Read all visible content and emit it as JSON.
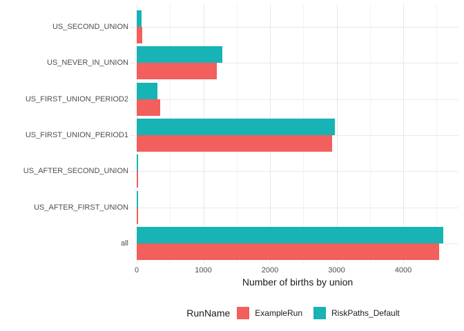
{
  "chart_data": {
    "type": "bar",
    "orientation": "horizontal",
    "title": "",
    "xlabel": "Number of births by union",
    "ylabel": "",
    "categories_top_to_bottom": [
      "US_SECOND_UNION",
      "US_NEVER_IN_UNION",
      "US_FIRST_UNION_PERIOD2",
      "US_FIRST_UNION_PERIOD1",
      "US_AFTER_SECOND_UNION",
      "US_AFTER_FIRST_UNION",
      "all"
    ],
    "series": [
      {
        "name": "ExampleRun",
        "color": "#f25f5c",
        "values": [
          85,
          1200,
          350,
          2930,
          12,
          12,
          4540
        ]
      },
      {
        "name": "RiskPaths_Default",
        "color": "#17b3b5",
        "values": [
          72,
          1285,
          310,
          2975,
          20,
          20,
          4600
        ]
      }
    ],
    "group_order_note": "RiskPaths_Default bar drawn above ExampleRun bar in each category group",
    "x_ticks": [
      0,
      1000,
      2000,
      3000,
      4000
    ],
    "x_minor_ticks": [
      500,
      1500,
      2500,
      3500,
      4500
    ],
    "xlim": [
      -230,
      4830
    ],
    "grid": true,
    "panel_background": "#ffffff",
    "grid_color": "#e7e7e7",
    "legend": {
      "position": "bottom",
      "title": "RunName"
    }
  }
}
